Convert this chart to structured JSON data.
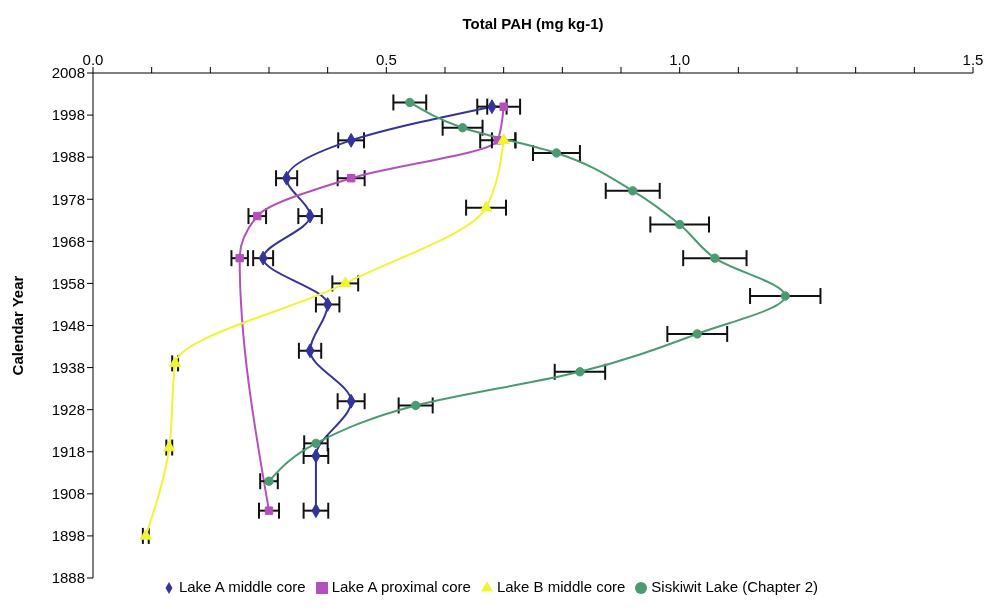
{
  "chart_data": {
    "type": "line",
    "xlabel": "Total PAH (mg kg-1)",
    "ylabel": "Calendar Year",
    "xlim": [
      0,
      1.5
    ],
    "xticks": [
      {
        "value": 0,
        "label": "0.0"
      },
      {
        "value": 0.1,
        "label": null
      },
      {
        "value": 0.2,
        "label": null
      },
      {
        "value": 0.3,
        "label": null
      },
      {
        "value": 0.4,
        "label": null
      },
      0.5,
      {
        "value": 0.6,
        "label": null
      },
      {
        "value": 0.7,
        "label": null
      },
      {
        "value": 0.8,
        "label": null
      },
      {
        "value": 0.9,
        "label": null
      },
      {
        "value": 1,
        "label": "1.0"
      },
      {
        "value": 1.1,
        "label": null
      },
      {
        "value": 1.2,
        "label": null
      },
      {
        "value": 1.3,
        "label": null
      },
      {
        "value": 1.4,
        "label": null
      },
      1.5
    ],
    "ylim": [
      1888,
      2008
    ],
    "yticks": [
      1888,
      1898,
      1908,
      1918,
      1928,
      1938,
      1948,
      1958,
      1968,
      1978,
      1988,
      1998,
      2008
    ],
    "grid": false,
    "legend": "bottom",
    "line_style": "solid",
    "series": [
      {
        "name": "Lake A middle core",
        "color": "#333399",
        "marker": "diamond",
        "x": [
          0.68,
          0.44,
          0.33,
          0.37,
          0.29,
          0.4,
          0.37,
          0.44,
          0.38,
          0.38
        ],
        "values": [
          2000,
          1992,
          1983,
          1974,
          1964,
          1953,
          1942,
          1930,
          1917,
          1904
        ],
        "xerrors": [
          0.025,
          0.022,
          0.018,
          0.02,
          0.017,
          0.02,
          0.019,
          0.023,
          0.021,
          0.021
        ]
      },
      {
        "name": "Lake A proximal core",
        "color": "#b44fbe",
        "marker": "square",
        "x": [
          0.7,
          0.69,
          0.44,
          0.28,
          0.25,
          0.3
        ],
        "values": [
          2000,
          1992,
          1983,
          1974,
          1964,
          1904
        ],
        "xerrors": [
          0.028,
          0.03,
          0.023,
          0.015,
          0.014,
          0.017
        ]
      },
      {
        "name": "Lake B middle core",
        "color": "#eef533",
        "marker": "triangle",
        "x": [
          0.7,
          0.67,
          0.43,
          0.14,
          0.13,
          0.09
        ],
        "values": [
          1992,
          1976,
          1958,
          1939,
          1919,
          1898
        ],
        "xerrors": [
          0.02,
          0.034,
          0.022,
          0.005,
          0.005,
          0.005
        ]
      },
      {
        "name": "Siskiwit Lake (Chapter 2)",
        "color": "#4a9a72",
        "marker": "circle",
        "x": [
          0.54,
          0.63,
          0.79,
          0.92,
          1.0,
          1.06,
          1.18,
          1.03,
          0.83,
          0.55,
          0.38,
          0.3
        ],
        "values": [
          2001,
          1995,
          1989,
          1980,
          1972,
          1964,
          1955,
          1946,
          1937,
          1929,
          1920,
          1911
        ],
        "xerrors": [
          0.028,
          0.034,
          0.04,
          0.046,
          0.05,
          0.054,
          0.06,
          0.051,
          0.043,
          0.029,
          0.02,
          0.015
        ]
      }
    ]
  }
}
